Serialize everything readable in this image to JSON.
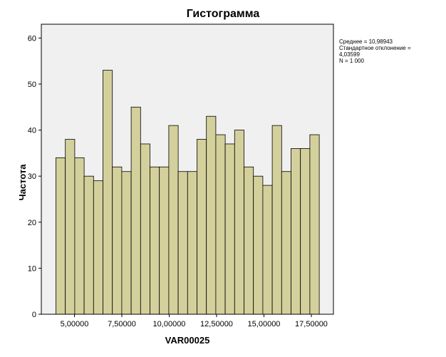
{
  "chart_data": {
    "type": "bar",
    "title": "Гистограмма",
    "xlabel": "VAR00025",
    "ylabel": "Частота",
    "ylim": [
      0,
      63
    ],
    "y_ticks": [
      "0",
      "10",
      "20",
      "30",
      "40",
      "50",
      "60"
    ],
    "x_tick_labels": [
      "5,00000",
      "7,50000",
      "10,00000",
      "12,50000",
      "15,00000",
      "17,50000"
    ],
    "values": [
      34,
      38,
      34,
      30,
      29,
      53,
      32,
      31,
      45,
      37,
      32,
      32,
      41,
      31,
      31,
      38,
      43,
      39,
      37,
      40,
      32,
      30,
      28,
      41,
      31,
      36,
      36,
      39
    ],
    "bar_color": "#d4d09c",
    "plot_background": "#f0f0f0",
    "stats": {
      "mean": "Среднее = 10,98943",
      "std_line1": "Стандартное отклонение =",
      "std_line2": "4,03599",
      "n": "N = 1 000"
    }
  }
}
